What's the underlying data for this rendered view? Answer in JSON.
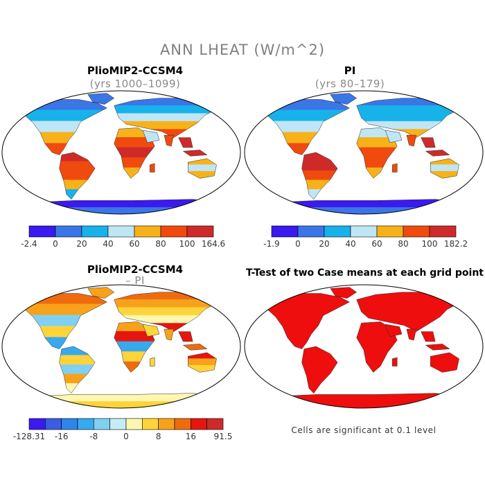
{
  "title": "ANN LHEAT (W/m^2)",
  "panels": [
    {
      "title": "PlioMIP2-CCSM4",
      "subtitle": "(yrs 1000–1099)"
    },
    {
      "title": "PI",
      "subtitle": "(yrs 80–179)"
    },
    {
      "title": "PlioMIP2-CCSM4",
      "subtitle": "– PI"
    },
    {
      "title": "T-Test of two Case means at each grid point",
      "subtitle": ""
    }
  ],
  "chart_data": [
    {
      "type": "heatmap",
      "name": "panel-1",
      "colorbar": {
        "labels": [
          "-2.4",
          "0",
          "20",
          "40",
          "60",
          "80",
          "100",
          "164.6"
        ],
        "colors": [
          "#3a1aee",
          "#3a76e6",
          "#17b2ea",
          "#bfe6f6",
          "#f7b21a",
          "#f04a0e",
          "#cf2a2a"
        ]
      }
    },
    {
      "type": "heatmap",
      "name": "panel-2",
      "colorbar": {
        "labels": [
          "-1.9",
          "0",
          "20",
          "40",
          "60",
          "80",
          "100",
          "182.2"
        ],
        "colors": [
          "#3a1aee",
          "#3a76e6",
          "#17b2ea",
          "#bfe6f6",
          "#f7b21a",
          "#f04a0e",
          "#cf2a2a"
        ]
      }
    },
    {
      "type": "heatmap",
      "name": "panel-3",
      "colorbar": {
        "labels": [
          "-128.31",
          "-16",
          "-8",
          "0",
          "8",
          "16",
          "91.5"
        ],
        "colors": [
          "#3a1aee",
          "#3a5be6",
          "#2f84ea",
          "#37a9ee",
          "#7fd0f2",
          "#c6ecf6",
          "#fff7b0",
          "#ffd43a",
          "#f7a21a",
          "#f06a0e",
          "#e6160e",
          "#cf2a2a"
        ]
      }
    },
    {
      "type": "heatmap",
      "name": "panel-4",
      "significant_color": "#ee0e0e"
    }
  ],
  "note": "Cells are significant at 0.1 level"
}
